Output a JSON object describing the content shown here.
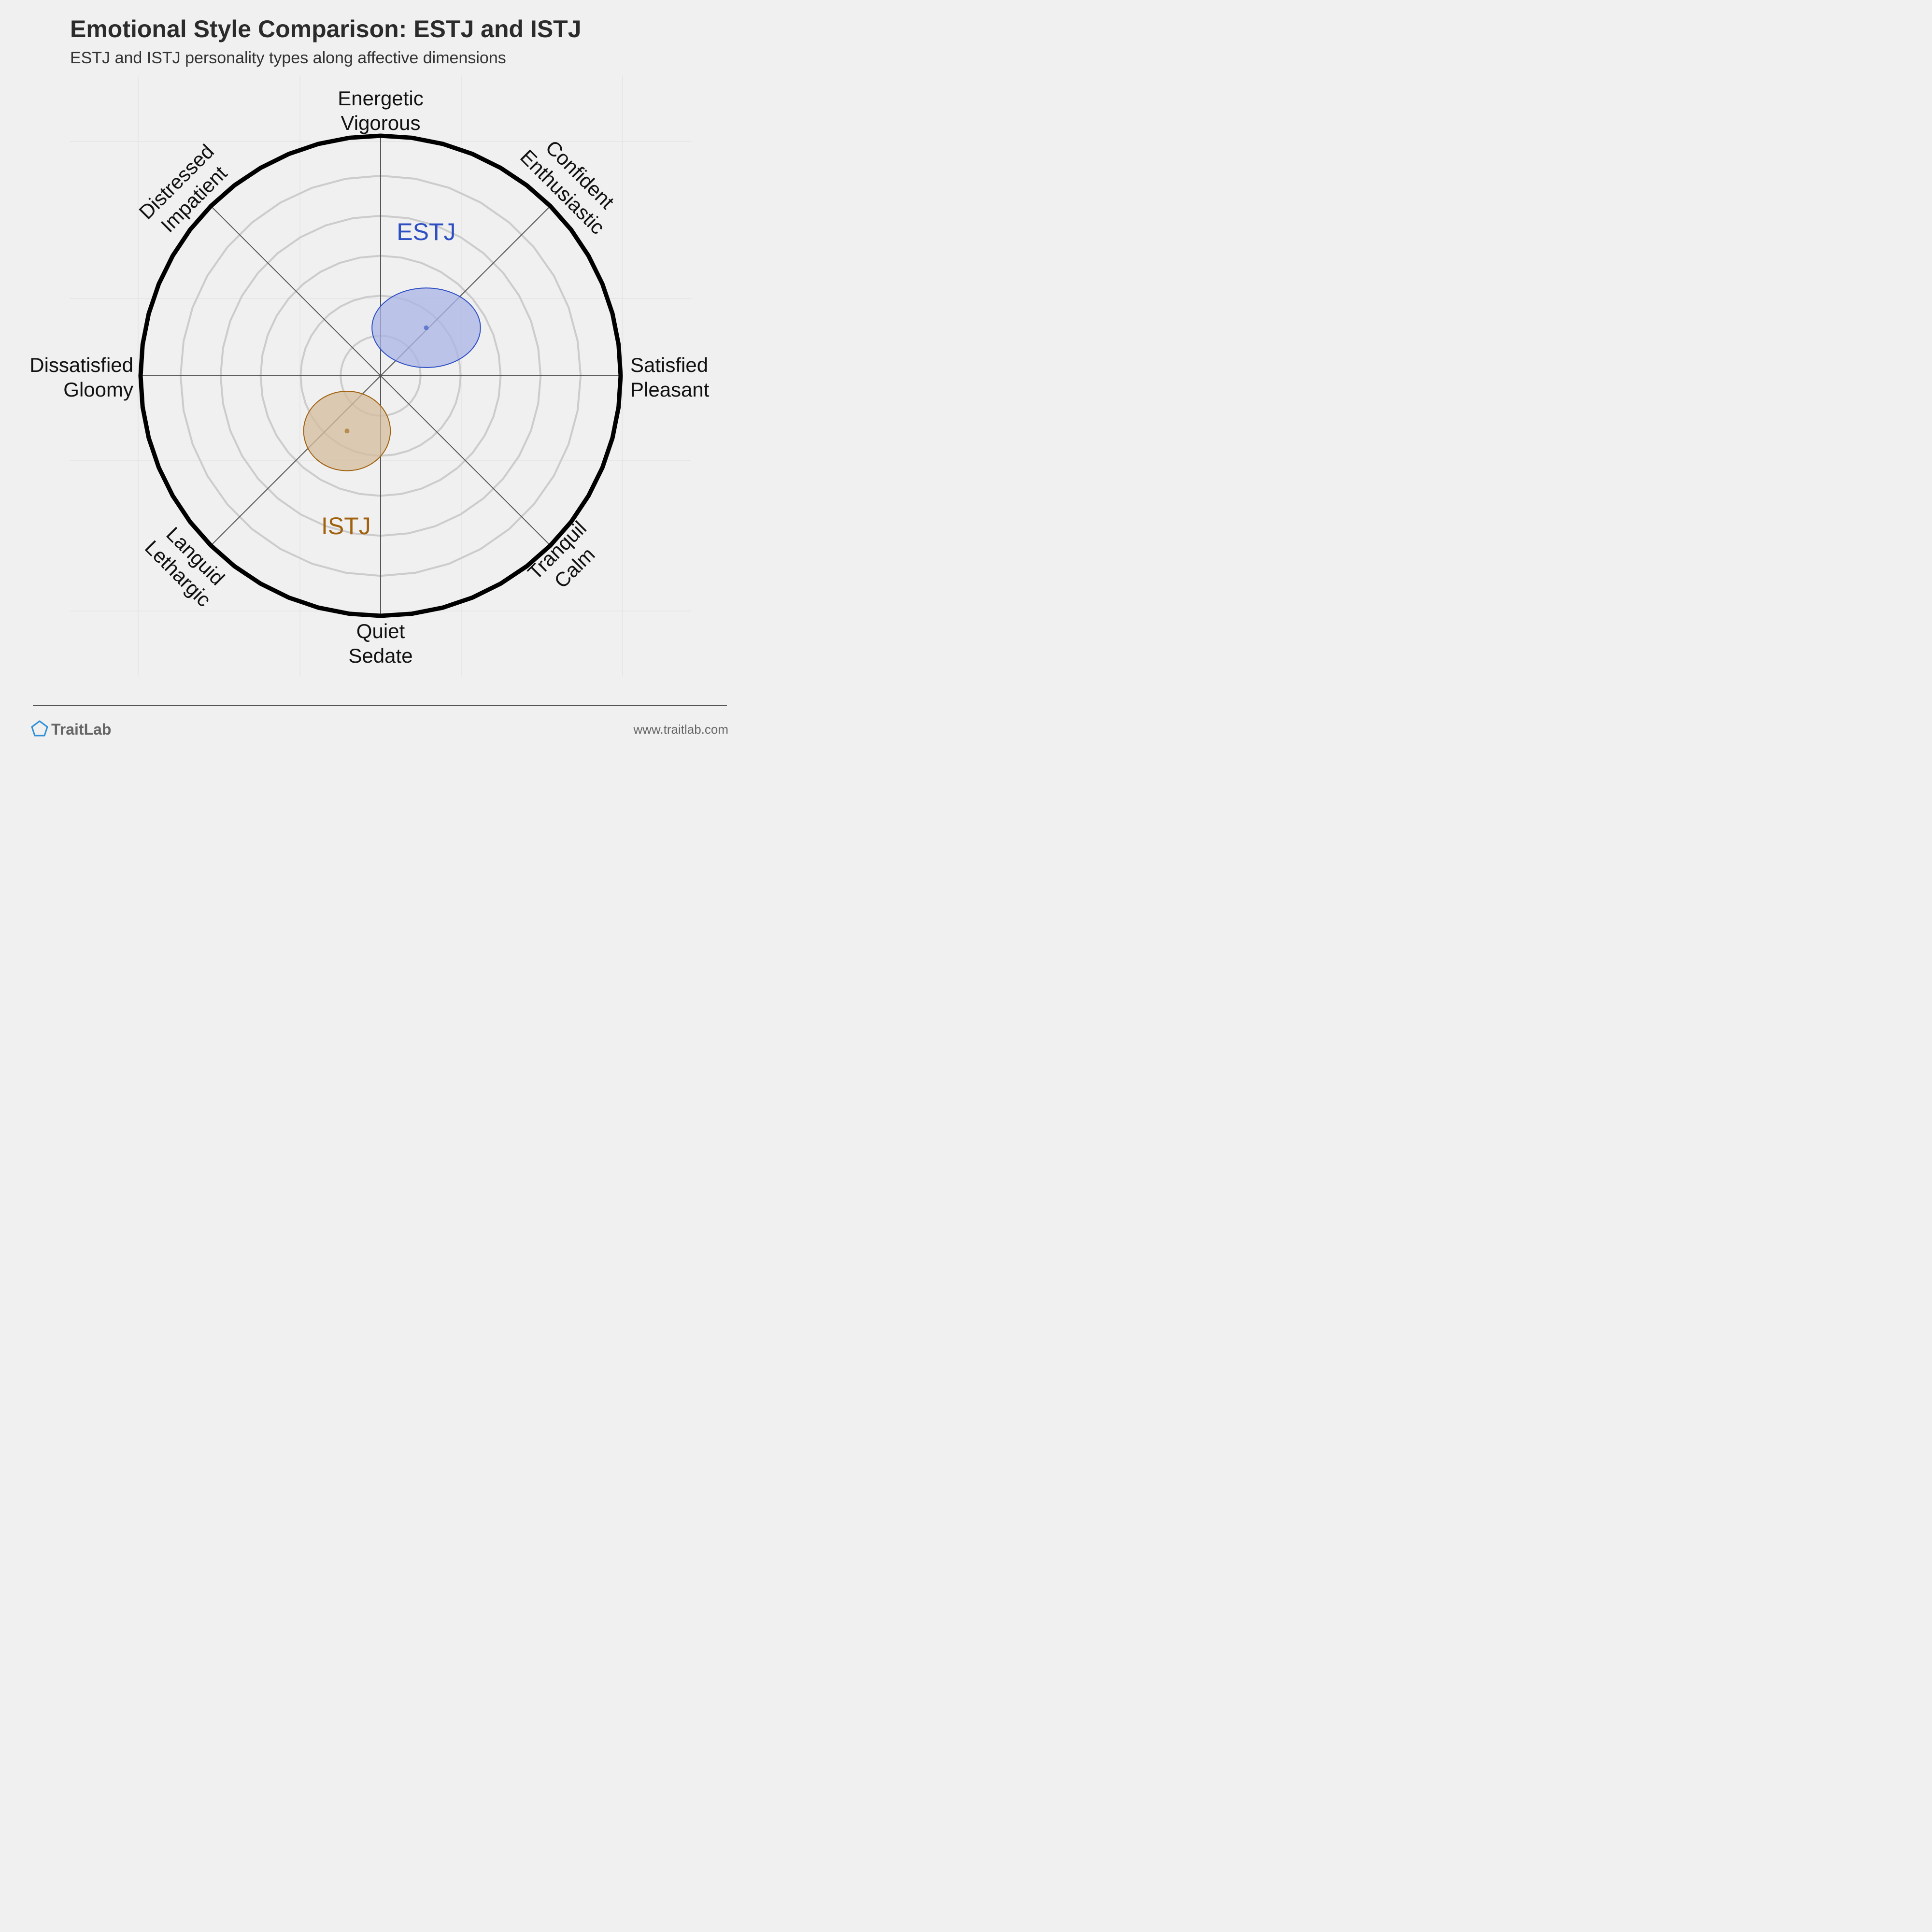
{
  "chart_data": {
    "type": "scatter",
    "title": "Emotional Style Comparison: ESTJ and ISTJ",
    "subtitle": "ESTJ and ISTJ personality types along affective dimensions",
    "axes": {
      "top": [
        "Energetic",
        "Vigorous"
      ],
      "top_right": [
        "Confident",
        "Enthusiastic"
      ],
      "right": [
        "Satisfied",
        "Pleasant"
      ],
      "bottom_right": [
        "Tranquil",
        "Calm"
      ],
      "bottom": [
        "Quiet",
        "Sedate"
      ],
      "bottom_left": [
        "Languid",
        "Lethargic"
      ],
      "left": [
        "Dissatisfied",
        "Gloomy"
      ],
      "top_left": [
        "Distressed",
        "Impatient"
      ]
    },
    "range": [
      -1,
      1
    ],
    "grid": true,
    "series": [
      {
        "name": "ESTJ",
        "color": "#2e4fc4",
        "fill": "#aab4e6",
        "x": 0.19,
        "y": 0.2,
        "spread_x": 0.45,
        "spread_y": 0.33
      },
      {
        "name": "ISTJ",
        "color": "#a0620f",
        "fill": "#d4bc9c",
        "x": -0.14,
        "y": -0.23,
        "spread_x": 0.36,
        "spread_y": 0.33
      }
    ]
  },
  "footer": {
    "brand": "TraitLab",
    "url": "www.traitlab.com"
  }
}
